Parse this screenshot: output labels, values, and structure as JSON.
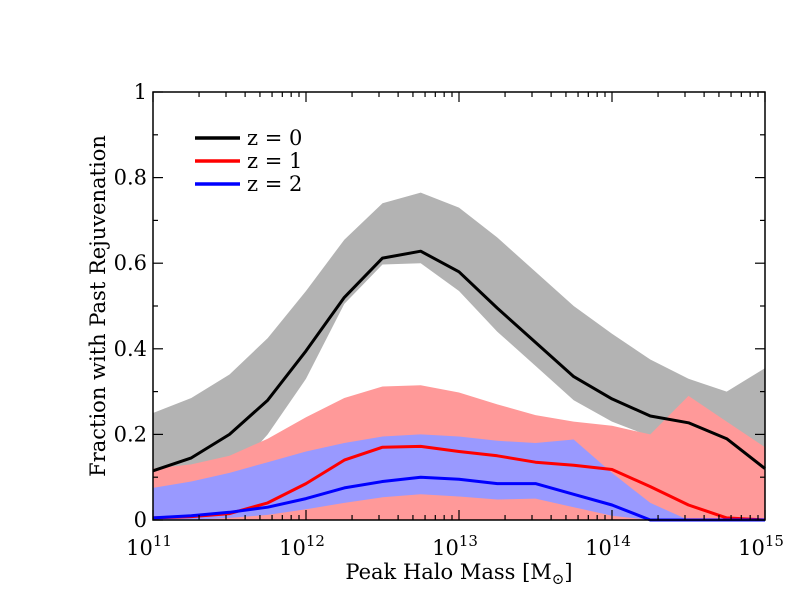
{
  "chart_data": {
    "type": "line",
    "title": "",
    "xlabel": "Peak Halo Mass [M",
    "xlabel_subscript": "⊙",
    "xlabel_close": "]",
    "ylabel": "Fraction with Past Rejuvenation",
    "xscale": "log",
    "xlim": [
      100000000000.0,
      1000000000000000.0
    ],
    "ylim": [
      0,
      1
    ],
    "x_ticks": [
      {
        "base": "10",
        "exp": "11",
        "value": 100000000000.0
      },
      {
        "base": "10",
        "exp": "12",
        "value": 1000000000000.0
      },
      {
        "base": "10",
        "exp": "13",
        "value": 10000000000000.0
      },
      {
        "base": "10",
        "exp": "14",
        "value": 100000000000000.0
      },
      {
        "base": "10",
        "exp": "15",
        "value": 1000000000000000.0
      }
    ],
    "y_ticks": [
      {
        "label": "0",
        "value": 0
      },
      {
        "label": "0.2",
        "value": 0.2
      },
      {
        "label": "0.4",
        "value": 0.4
      },
      {
        "label": "0.6",
        "value": 0.6
      },
      {
        "label": "0.8",
        "value": 0.8
      },
      {
        "label": "1",
        "value": 1
      }
    ],
    "legend_position": "top-left",
    "grid": false,
    "series": [
      {
        "name": "z = 0",
        "color": "#000000",
        "band_color": "#b3b3b3",
        "x": [
          100000000000.0,
          178000000000.0,
          316000000000.0,
          562000000000.0,
          1000000000000.0,
          1780000000000.0,
          3160000000000.0,
          5620000000000.0,
          10000000000000.0,
          17800000000000.0,
          31600000000000.0,
          56200000000000.0,
          100000000000000.0,
          178000000000000.0,
          316000000000000.0,
          562000000000000.0,
          1000000000000000.0
        ],
        "y": [
          0.115,
          0.145,
          0.2,
          0.28,
          0.395,
          0.52,
          0.612,
          0.628,
          0.58,
          0.495,
          0.415,
          0.335,
          0.283,
          0.243,
          0.227,
          0.19,
          0.12
        ],
        "upper": [
          0.25,
          0.285,
          0.34,
          0.425,
          0.535,
          0.655,
          0.74,
          0.765,
          0.73,
          0.66,
          0.58,
          0.5,
          0.435,
          0.375,
          0.33,
          0.3,
          0.355
        ],
        "lower": [
          0.01,
          0.04,
          0.1,
          0.2,
          0.33,
          0.505,
          0.597,
          0.6,
          0.535,
          0.44,
          0.36,
          0.28,
          0.23,
          0.195,
          0.18,
          0.13,
          0.06
        ]
      },
      {
        "name": "z = 1",
        "color": "#ff0000",
        "band_color": "#ff9999",
        "x": [
          100000000000.0,
          178000000000.0,
          316000000000.0,
          562000000000.0,
          1000000000000.0,
          1780000000000.0,
          3160000000000.0,
          5620000000000.0,
          10000000000000.0,
          17800000000000.0,
          31600000000000.0,
          56200000000000.0,
          100000000000000.0,
          178000000000000.0,
          316000000000000.0,
          562000000000000.0,
          1000000000000000.0
        ],
        "y": [
          0.005,
          0.008,
          0.015,
          0.04,
          0.085,
          0.14,
          0.17,
          0.172,
          0.16,
          0.15,
          0.135,
          0.128,
          0.118,
          0.078,
          0.035,
          0.005,
          0.0
        ],
        "upper": [
          0.12,
          0.13,
          0.15,
          0.19,
          0.24,
          0.285,
          0.312,
          0.315,
          0.298,
          0.27,
          0.245,
          0.23,
          0.22,
          0.2,
          0.29,
          0.23,
          0.17
        ],
        "lower": [
          0.0,
          0.0,
          0.0,
          0.0,
          0.0,
          0.0,
          0.0,
          0.0,
          0.0,
          0.0,
          0.0,
          0.0,
          0.0,
          0.0,
          0.0,
          0.0,
          0.0
        ]
      },
      {
        "name": "z = 2",
        "color": "#0000ff",
        "band_color": "#9999ff",
        "x": [
          100000000000.0,
          178000000000.0,
          316000000000.0,
          562000000000.0,
          1000000000000.0,
          1780000000000.0,
          3160000000000.0,
          5620000000000.0,
          10000000000000.0,
          17800000000000.0,
          31600000000000.0,
          56200000000000.0,
          100000000000000.0,
          178000000000000.0,
          316000000000000.0,
          562000000000000.0,
          1000000000000000.0
        ],
        "y": [
          0.005,
          0.01,
          0.018,
          0.03,
          0.05,
          0.075,
          0.09,
          0.1,
          0.095,
          0.085,
          0.085,
          0.06,
          0.035,
          0.0,
          0.0,
          0.0,
          0.0
        ],
        "upper": [
          0.075,
          0.09,
          0.11,
          0.135,
          0.16,
          0.18,
          0.195,
          0.2,
          0.195,
          0.185,
          0.18,
          0.188,
          0.11,
          0.04,
          0.0,
          0.0,
          0.0
        ],
        "lower": [
          0.0,
          0.0,
          0.005,
          0.012,
          0.025,
          0.04,
          0.053,
          0.06,
          0.055,
          0.048,
          0.05,
          0.03,
          0.01,
          0.0,
          0.0,
          0.0,
          0.0
        ]
      }
    ]
  }
}
